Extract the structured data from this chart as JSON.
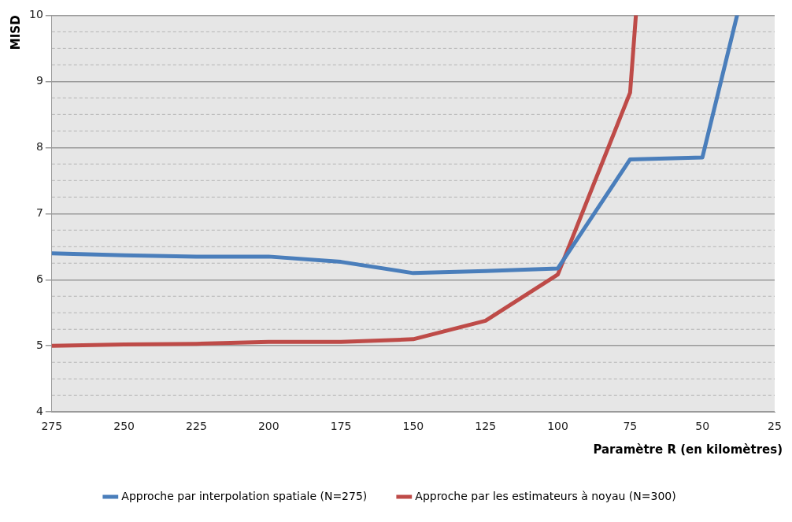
{
  "chart_data": {
    "type": "line",
    "xlabel": "Paramètre R (en kilomètres)",
    "ylabel": "MISD",
    "xlim": [
      275,
      25
    ],
    "xticks": [
      275,
      250,
      225,
      200,
      175,
      150,
      125,
      100,
      75,
      50,
      25
    ],
    "ylim": [
      4,
      10
    ],
    "yticks": [
      4,
      {
        "value": 4.25,
        "label": null
      },
      {
        "value": 4.5,
        "label": null
      },
      {
        "value": 4.75,
        "label": null
      },
      5,
      {
        "value": 5.25,
        "label": null
      },
      {
        "value": 5.5,
        "label": null
      },
      {
        "value": 5.75,
        "label": null
      },
      6,
      {
        "value": 6.25,
        "label": null
      },
      {
        "value": 6.5,
        "label": null
      },
      {
        "value": 6.75,
        "label": null
      },
      7,
      {
        "value": 7.25,
        "label": null
      },
      {
        "value": 7.5,
        "label": null
      },
      {
        "value": 7.75,
        "label": null
      },
      8,
      {
        "value": 8.25,
        "label": null
      },
      {
        "value": 8.5,
        "label": null
      },
      {
        "value": 8.75,
        "label": null
      },
      9,
      {
        "value": 9.25,
        "label": null
      },
      {
        "value": 9.5,
        "label": null
      },
      {
        "value": 9.75,
        "label": null
      },
      10
    ],
    "grid": "y",
    "legend": "bottom",
    "marker": "none",
    "line_style": "solid",
    "series": [
      {
        "name": "Approche par interpolation spatiale (N=275)",
        "color": "#4a7ebb",
        "x": [
          275,
          250,
          225,
          200,
          175,
          150,
          125,
          100,
          75,
          50,
          38
        ],
        "values": [
          6.4,
          6.37,
          6.35,
          6.35,
          6.27,
          6.1,
          6.13,
          6.17,
          7.82,
          7.85,
          10
        ]
      },
      {
        "name": "Approche par les estimateurs à noyau (N=300)",
        "color": "#be4b48",
        "x": [
          275,
          250,
          225,
          200,
          175,
          150,
          125,
          100,
          75,
          73
        ],
        "values": [
          5.0,
          5.02,
          5.03,
          5.06,
          5.06,
          5.1,
          5.38,
          6.08,
          8.83,
          10
        ]
      }
    ]
  }
}
